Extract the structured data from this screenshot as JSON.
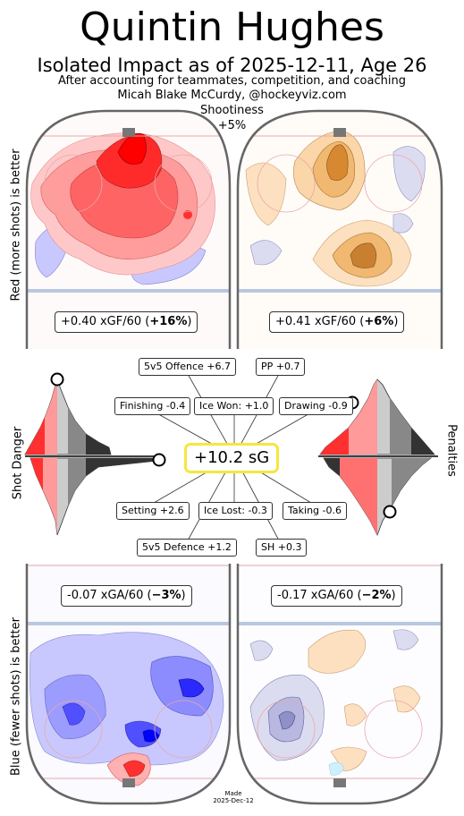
{
  "title": "Quintin Hughes",
  "subtitle": "Isolated Impact as of 2025-12-11, Age 26",
  "note1": "After accounting for teammates, competition, and coaching",
  "note2": "Micah Blake McCurdy, @hockeyviz.com",
  "shootiness": {
    "label": "Shootiness",
    "value": "+5%"
  },
  "left_axis_top": "Red (more shots) is better",
  "left_axis_bottom": "Blue (fewer shots) is better",
  "left_axis_middle": "Shot Danger",
  "right_axis_middle": "Penalties",
  "offence": {
    "left_stat_value": "+0.40 xGF/60 (",
    "left_stat_pct": "+16%",
    "right_stat_value": "+0.41 xGF/60 (",
    "right_stat_pct": "+6%"
  },
  "defence": {
    "left_stat_value": "-0.07 xGA/60 (",
    "left_stat_pct": "−3%",
    "right_stat_value": "-0.17 xGA/60 (",
    "right_stat_pct": "−2%"
  },
  "central": "+10.2 sG",
  "components": {
    "offence_5v5": "5v5 Offence +6.7",
    "pp": "PP +0.7",
    "finishing": "Finishing -0.4",
    "ice_won": "Ice Won: +1.0",
    "drawing": "Drawing -0.9",
    "setting": "Setting +2.6",
    "ice_lost": "Ice Lost: -0.3",
    "taking": "Taking -0.6",
    "defence_5v5": "5v5 Defence +1.2",
    "sh": "SH +0.3"
  },
  "made": {
    "line1": "Made",
    "line2": "2025-Dec-12"
  },
  "colors": {
    "offence_red": "#ff0000",
    "offence_orange": "#e8902a",
    "defence_blue": "#0000ff",
    "neutral_lavender": "#b8b8e0",
    "highlight": "#f5e642"
  },
  "chart_data": [
    {
      "type": "heatmap",
      "panel": "5v5 offence",
      "metric": "xGF/60",
      "value": 0.4,
      "percent": 16
    },
    {
      "type": "heatmap",
      "panel": "PP offence",
      "metric": "xGF/60",
      "value": 0.41,
      "percent": 6
    },
    {
      "type": "heatmap",
      "panel": "5v5 defence",
      "metric": "xGA/60",
      "value": -0.07,
      "percent": -3
    },
    {
      "type": "heatmap",
      "panel": "SH defence",
      "metric": "xGA/60",
      "value": -0.17,
      "percent": -2
    },
    {
      "type": "bar",
      "categories": [
        "5v5 Offence",
        "PP",
        "Finishing",
        "Ice Won",
        "Drawing",
        "Setting",
        "Ice Lost",
        "Taking",
        "5v5 Defence",
        "SH"
      ],
      "values": [
        6.7,
        0.7,
        -0.4,
        1.0,
        -0.9,
        2.6,
        -0.3,
        -0.6,
        1.2,
        0.3
      ],
      "total": 10.2,
      "unit": "sG"
    }
  ]
}
